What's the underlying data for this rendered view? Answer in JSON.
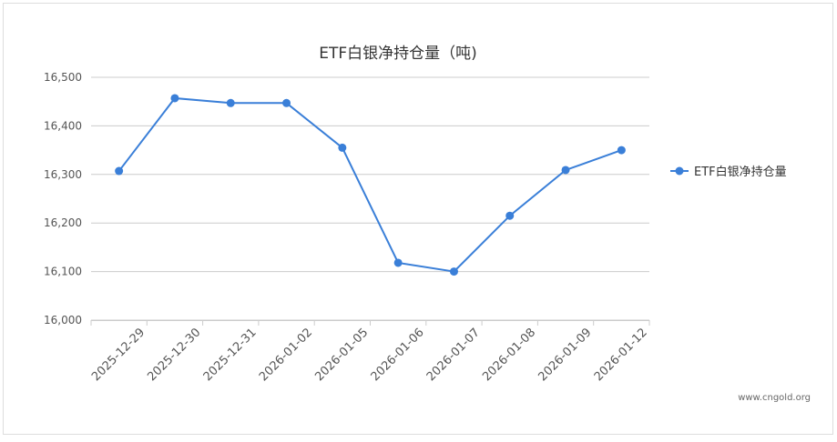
{
  "chart_data": {
    "type": "line",
    "title": "ETF白银净持仓量（吨)",
    "categories": [
      "2025-12-29",
      "2025-12-30",
      "2025-12-31",
      "2026-01-02",
      "2026-01-05",
      "2026-01-06",
      "2026-01-07",
      "2026-01-08",
      "2026-01-09",
      "2026-01-12"
    ],
    "series": [
      {
        "name": "ETF白银净持仓量",
        "color": "#3a7fd8",
        "values": [
          16307,
          16457,
          16447,
          16447,
          16355,
          16118,
          16100,
          16215,
          16309,
          16350
        ]
      }
    ],
    "ylim": [
      16000,
      16500
    ],
    "yticks": [
      {
        "value": 16000,
        "label": "16,000"
      },
      {
        "value": 16100,
        "label": "16,100"
      },
      {
        "value": 16200,
        "label": "16,200"
      },
      {
        "value": 16300,
        "label": "16,300"
      },
      {
        "value": 16400,
        "label": "16,400"
      },
      {
        "value": 16500,
        "label": "16,500"
      }
    ],
    "grid": true,
    "legend": "right",
    "watermark": "www.cngold.org"
  }
}
